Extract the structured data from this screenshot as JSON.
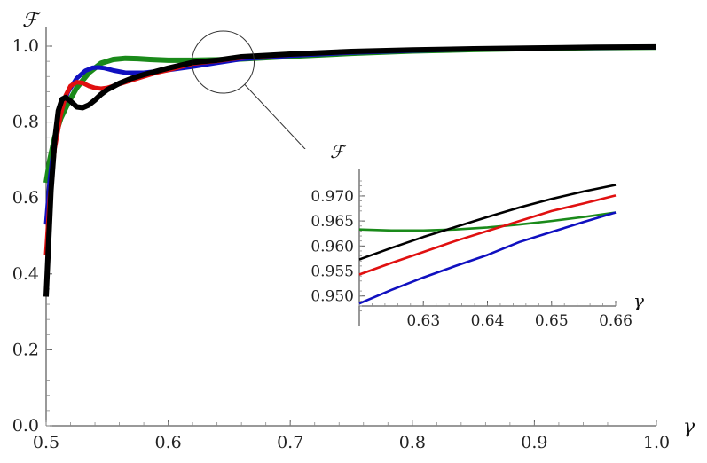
{
  "chart_data": {
    "type": "line",
    "title": "",
    "xlabel": "γ",
    "ylabel": "ℱ",
    "xlim": [
      0.5,
      1.0
    ],
    "ylim": [
      0.0,
      1.0
    ],
    "x_ticks": [
      "0.5",
      "0.6",
      "0.7",
      "0.8",
      "0.9",
      "1.0"
    ],
    "y_ticks": [
      "0.0",
      "0.2",
      "0.4",
      "0.6",
      "0.8",
      "1.0"
    ],
    "grid": false,
    "legend": "none",
    "series": [
      {
        "color": "#1a8a1a",
        "x": [
          0.5,
          0.503,
          0.507,
          0.512,
          0.518,
          0.525,
          0.535,
          0.545,
          0.555,
          0.565,
          0.575,
          0.585,
          0.6,
          0.62,
          0.64,
          0.66,
          0.7,
          0.75,
          0.8,
          0.85,
          0.9,
          0.95,
          1.0
        ],
        "y": [
          0.64,
          0.7,
          0.76,
          0.81,
          0.85,
          0.89,
          0.93,
          0.955,
          0.965,
          0.968,
          0.967,
          0.965,
          0.963,
          0.963,
          0.964,
          0.966,
          0.973,
          0.981,
          0.987,
          0.991,
          0.994,
          0.996,
          0.997
        ]
      },
      {
        "color": "#1010c0",
        "x": [
          0.5,
          0.503,
          0.507,
          0.512,
          0.518,
          0.525,
          0.532,
          0.538,
          0.543,
          0.548,
          0.555,
          0.565,
          0.58,
          0.6,
          0.62,
          0.64,
          0.66,
          0.7,
          0.75,
          0.8,
          0.85,
          0.9,
          0.95,
          1.0
        ],
        "y": [
          0.53,
          0.65,
          0.75,
          0.83,
          0.88,
          0.915,
          0.935,
          0.943,
          0.944,
          0.942,
          0.936,
          0.93,
          0.93,
          0.937,
          0.946,
          0.956,
          0.966,
          0.975,
          0.983,
          0.988,
          0.992,
          0.995,
          0.996,
          0.997
        ]
      },
      {
        "color": "#e01010",
        "x": [
          0.5,
          0.503,
          0.507,
          0.512,
          0.516,
          0.52,
          0.525,
          0.53,
          0.535,
          0.54,
          0.545,
          0.55,
          0.56,
          0.575,
          0.59,
          0.6,
          0.62,
          0.64,
          0.66,
          0.7,
          0.75,
          0.8,
          0.85,
          0.9,
          0.95,
          1.0
        ],
        "y": [
          0.45,
          0.6,
          0.73,
          0.82,
          0.87,
          0.895,
          0.905,
          0.903,
          0.895,
          0.89,
          0.888,
          0.89,
          0.9,
          0.915,
          0.93,
          0.937,
          0.954,
          0.961,
          0.97,
          0.978,
          0.985,
          0.99,
          0.993,
          0.995,
          0.997,
          0.998
        ]
      },
      {
        "color": "#000000",
        "x": [
          0.5,
          0.502,
          0.504,
          0.507,
          0.51,
          0.513,
          0.516,
          0.52,
          0.525,
          0.53,
          0.535,
          0.54,
          0.545,
          0.55,
          0.56,
          0.57,
          0.58,
          0.6,
          0.62,
          0.64,
          0.66,
          0.7,
          0.75,
          0.8,
          0.85,
          0.9,
          0.95,
          1.0
        ],
        "y": [
          0.34,
          0.48,
          0.62,
          0.75,
          0.83,
          0.86,
          0.865,
          0.855,
          0.84,
          0.838,
          0.845,
          0.858,
          0.873,
          0.885,
          0.902,
          0.915,
          0.925,
          0.942,
          0.957,
          0.963,
          0.972,
          0.979,
          0.986,
          0.99,
          0.993,
          0.995,
          0.997,
          0.998
        ]
      }
    ],
    "zoom_circle_center": [
      0.645,
      0.958
    ],
    "inset": {
      "xlabel": "γ",
      "ylabel": "ℱ",
      "xlim": [
        0.62,
        0.66
      ],
      "ylim": [
        0.948,
        0.973
      ],
      "x_ticks": [
        "0.63",
        "0.64",
        "0.65",
        "0.66"
      ],
      "y_ticks": [
        "0.950",
        "0.955",
        "0.960",
        "0.965",
        "0.970"
      ],
      "series": [
        {
          "color": "#1a8a1a",
          "x": [
            0.62,
            0.625,
            0.63,
            0.635,
            0.64,
            0.645,
            0.65,
            0.655,
            0.66
          ],
          "y": [
            0.9633,
            0.9631,
            0.9631,
            0.9633,
            0.9637,
            0.9643,
            0.965,
            0.9658,
            0.9667
          ]
        },
        {
          "color": "#1010c0",
          "x": [
            0.62,
            0.625,
            0.63,
            0.635,
            0.64,
            0.645,
            0.65,
            0.655,
            0.66
          ],
          "y": [
            0.9485,
            0.9512,
            0.9537,
            0.956,
            0.9582,
            0.9608,
            0.9628,
            0.9648,
            0.9667
          ]
        },
        {
          "color": "#e01010",
          "x": [
            0.62,
            0.625,
            0.63,
            0.635,
            0.64,
            0.645,
            0.65,
            0.655,
            0.66
          ],
          "y": [
            0.9543,
            0.9566,
            0.9588,
            0.961,
            0.963,
            0.965,
            0.967,
            0.9685,
            0.9701
          ]
        },
        {
          "color": "#000000",
          "x": [
            0.62,
            0.625,
            0.63,
            0.635,
            0.64,
            0.645,
            0.65,
            0.655,
            0.66
          ],
          "y": [
            0.9573,
            0.9596,
            0.9618,
            0.9638,
            0.9658,
            0.9677,
            0.9694,
            0.9709,
            0.9722
          ]
        }
      ]
    }
  }
}
